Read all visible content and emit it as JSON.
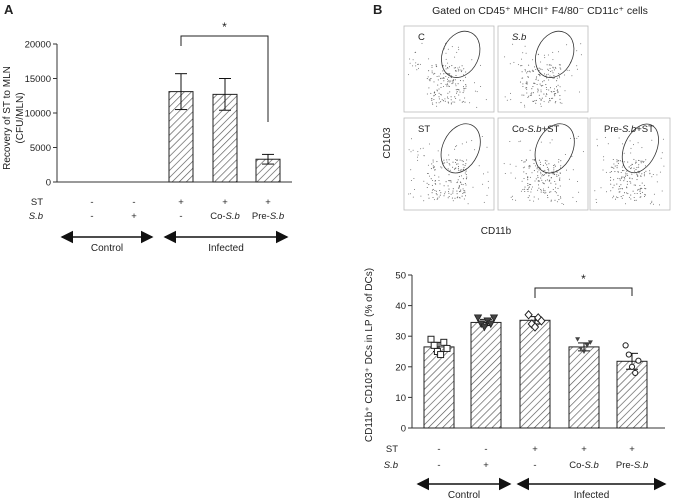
{
  "panels": {
    "a": {
      "letter": "A"
    },
    "b": {
      "letter": "B"
    }
  },
  "chart_data": [
    {
      "type": "bar",
      "panel": "A",
      "categories": [
        "ST- S.b-",
        "ST- S.b+",
        "ST+ -",
        "ST+ Co-S.b",
        "ST+ Pre-S.b"
      ],
      "values": [
        0,
        0,
        13100,
        12700,
        3300
      ],
      "errors": [
        0,
        0,
        2600,
        2300,
        700
      ],
      "ylabel_line1": "Recovery of ST to MLN",
      "ylabel_line2": "(CFU/MLN)",
      "ylim": [
        0,
        20000
      ],
      "yticks": [
        "0",
        "5000",
        "10000",
        "15000",
        "20000"
      ],
      "significance": {
        "from": 2,
        "to": 4,
        "label": "*"
      },
      "row_st": {
        "label": "ST",
        "values": [
          "-",
          "-",
          "+",
          "+",
          "+"
        ]
      },
      "row_sb": {
        "label": "S.b",
        "values": [
          "-",
          "+",
          "-",
          "Co-S.b",
          "Pre-S.b"
        ]
      },
      "groups": {
        "control": "Control",
        "infected": "Infected"
      }
    },
    {
      "type": "bar",
      "panel": "B",
      "categories": [
        "ST- S.b-",
        "ST- S.b+",
        "ST+ -",
        "ST+ Co-S.b",
        "ST+ Pre-S.b"
      ],
      "values": [
        26.5,
        34.5,
        35.2,
        26.5,
        21.8
      ],
      "errors": [
        1.5,
        1.0,
        1.2,
        1.3,
        2.6
      ],
      "points": [
        [
          29,
          27,
          25,
          24,
          28,
          26
        ],
        [
          36,
          34,
          33,
          35,
          34,
          36
        ],
        [
          37,
          34,
          33,
          36,
          35
        ],
        [
          29,
          26,
          25,
          27,
          28
        ],
        [
          27,
          24,
          20,
          18,
          22
        ]
      ],
      "markers": [
        "square",
        "triangle-down",
        "diamond",
        "triangle-small",
        "circle"
      ],
      "ylabel": "CD11b⁺ CD103⁺ DCs in LP (% of DCs)",
      "ylim": [
        0,
        50
      ],
      "yticks": [
        "0",
        "10",
        "20",
        "30",
        "40",
        "50"
      ],
      "significance": {
        "from": 2,
        "to": 4,
        "label": "*"
      },
      "row_st": {
        "label": "ST",
        "values": [
          "-",
          "-",
          "+",
          "+",
          "+"
        ]
      },
      "row_sb": {
        "label": "S.b",
        "values": [
          "-",
          "+",
          "-",
          "Co-S.b",
          "Pre-S.b"
        ]
      },
      "groups": {
        "control": "Control",
        "infected": "Infected"
      }
    }
  ],
  "flow": {
    "title": "Gated on CD45⁺ MHCII⁺ F4/80⁻ CD11c⁺ cells",
    "yaxis": "CD103",
    "xaxis": "CD11b",
    "plots": [
      "C",
      "S.b",
      "ST",
      "Co-S.b+ST",
      "Pre-S.b+ST"
    ]
  }
}
